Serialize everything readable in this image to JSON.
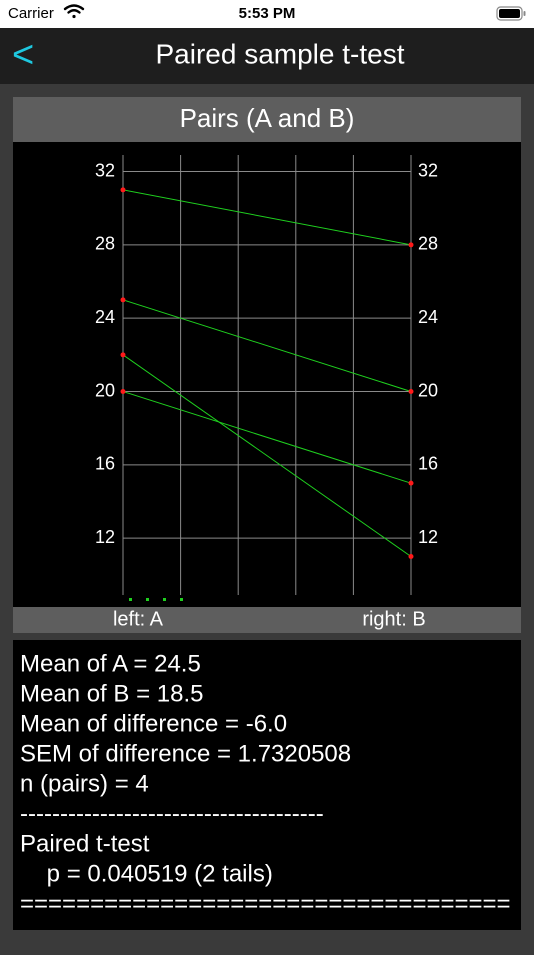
{
  "status_bar": {
    "carrier": "Carrier",
    "time": "5:53 PM"
  },
  "nav": {
    "back": "<",
    "title": "Paired sample t-test"
  },
  "chart_data": {
    "type": "paired",
    "title": "Pairs (A and B)",
    "x_labels": [
      "left: A",
      "right: B"
    ],
    "series": [
      {
        "values": [
          31,
          25,
          22,
          20
        ],
        "color": "#ff1a1a"
      },
      {
        "values": [
          28,
          20,
          11,
          15
        ],
        "color": "#ff1a1a"
      }
    ],
    "line_color": "#1fd01f",
    "ylim": [
      8.9,
      32.9
    ],
    "yticks": [
      12,
      16,
      20,
      24,
      28,
      32
    ],
    "grid": true
  },
  "results": {
    "lines": [
      "Mean of A = 24.5",
      "Mean of B = 18.5",
      "Mean of difference = -6.0",
      "SEM of difference = 1.7320508",
      "n (pairs) = 4",
      "--------------------------------------",
      "Paired t-test",
      "    p = 0.040519 (2 tails)",
      "==================================="
    ]
  }
}
